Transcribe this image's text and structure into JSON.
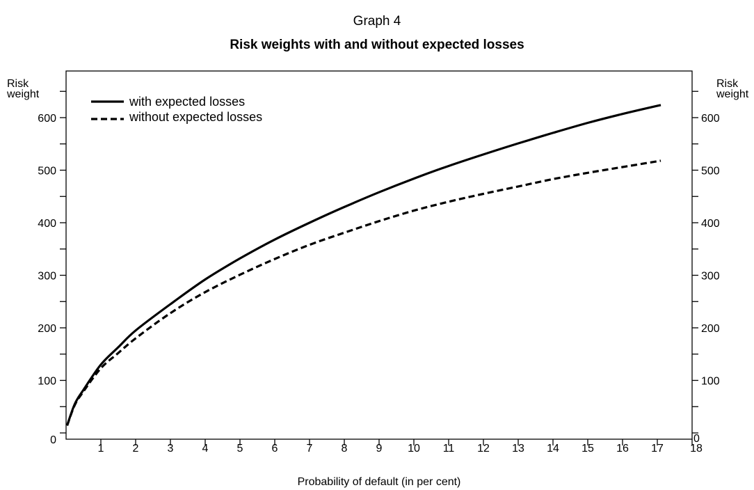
{
  "chart_data": {
    "type": "line",
    "supertitle": "Graph 4",
    "title": "Risk weights with and without expected losses",
    "xlabel": "Probability of default (in per cent)",
    "ylabel_left": [
      "Risk",
      "weight"
    ],
    "ylabel_right": [
      "Risk",
      "weight"
    ],
    "xlim": [
      0,
      18
    ],
    "ylim": [
      0,
      650
    ],
    "x_ticks": [
      1,
      2,
      3,
      4,
      5,
      6,
      7,
      8,
      9,
      10,
      11,
      12,
      13,
      14,
      15,
      16,
      17,
      18
    ],
    "y_ticks": [
      0,
      100,
      200,
      300,
      400,
      500,
      600
    ],
    "y_minor_ticks": [
      50,
      150,
      250,
      350,
      450,
      550,
      650
    ],
    "x": [
      0.03,
      0.25,
      0.5,
      1,
      1.5,
      2,
      3,
      4,
      5,
      6,
      7,
      8,
      9,
      10,
      11,
      12,
      13,
      14,
      15,
      16,
      17.1
    ],
    "series": [
      {
        "name": "with expected losses",
        "style": "solid",
        "values": [
          14,
          55,
          82,
          130,
          163,
          195,
          245,
          292,
          332,
          368,
          400,
          430,
          458,
          484,
          508,
          530,
          551,
          571,
          590,
          607,
          624
        ]
      },
      {
        "name": "without expected losses",
        "style": "dashed",
        "values": [
          14,
          53,
          79,
          123,
          152,
          180,
          228,
          268,
          301,
          331,
          358,
          381,
          403,
          423,
          440,
          455,
          469,
          483,
          495,
          506,
          518
        ]
      }
    ],
    "legend_position": "top-left",
    "grid": false
  }
}
